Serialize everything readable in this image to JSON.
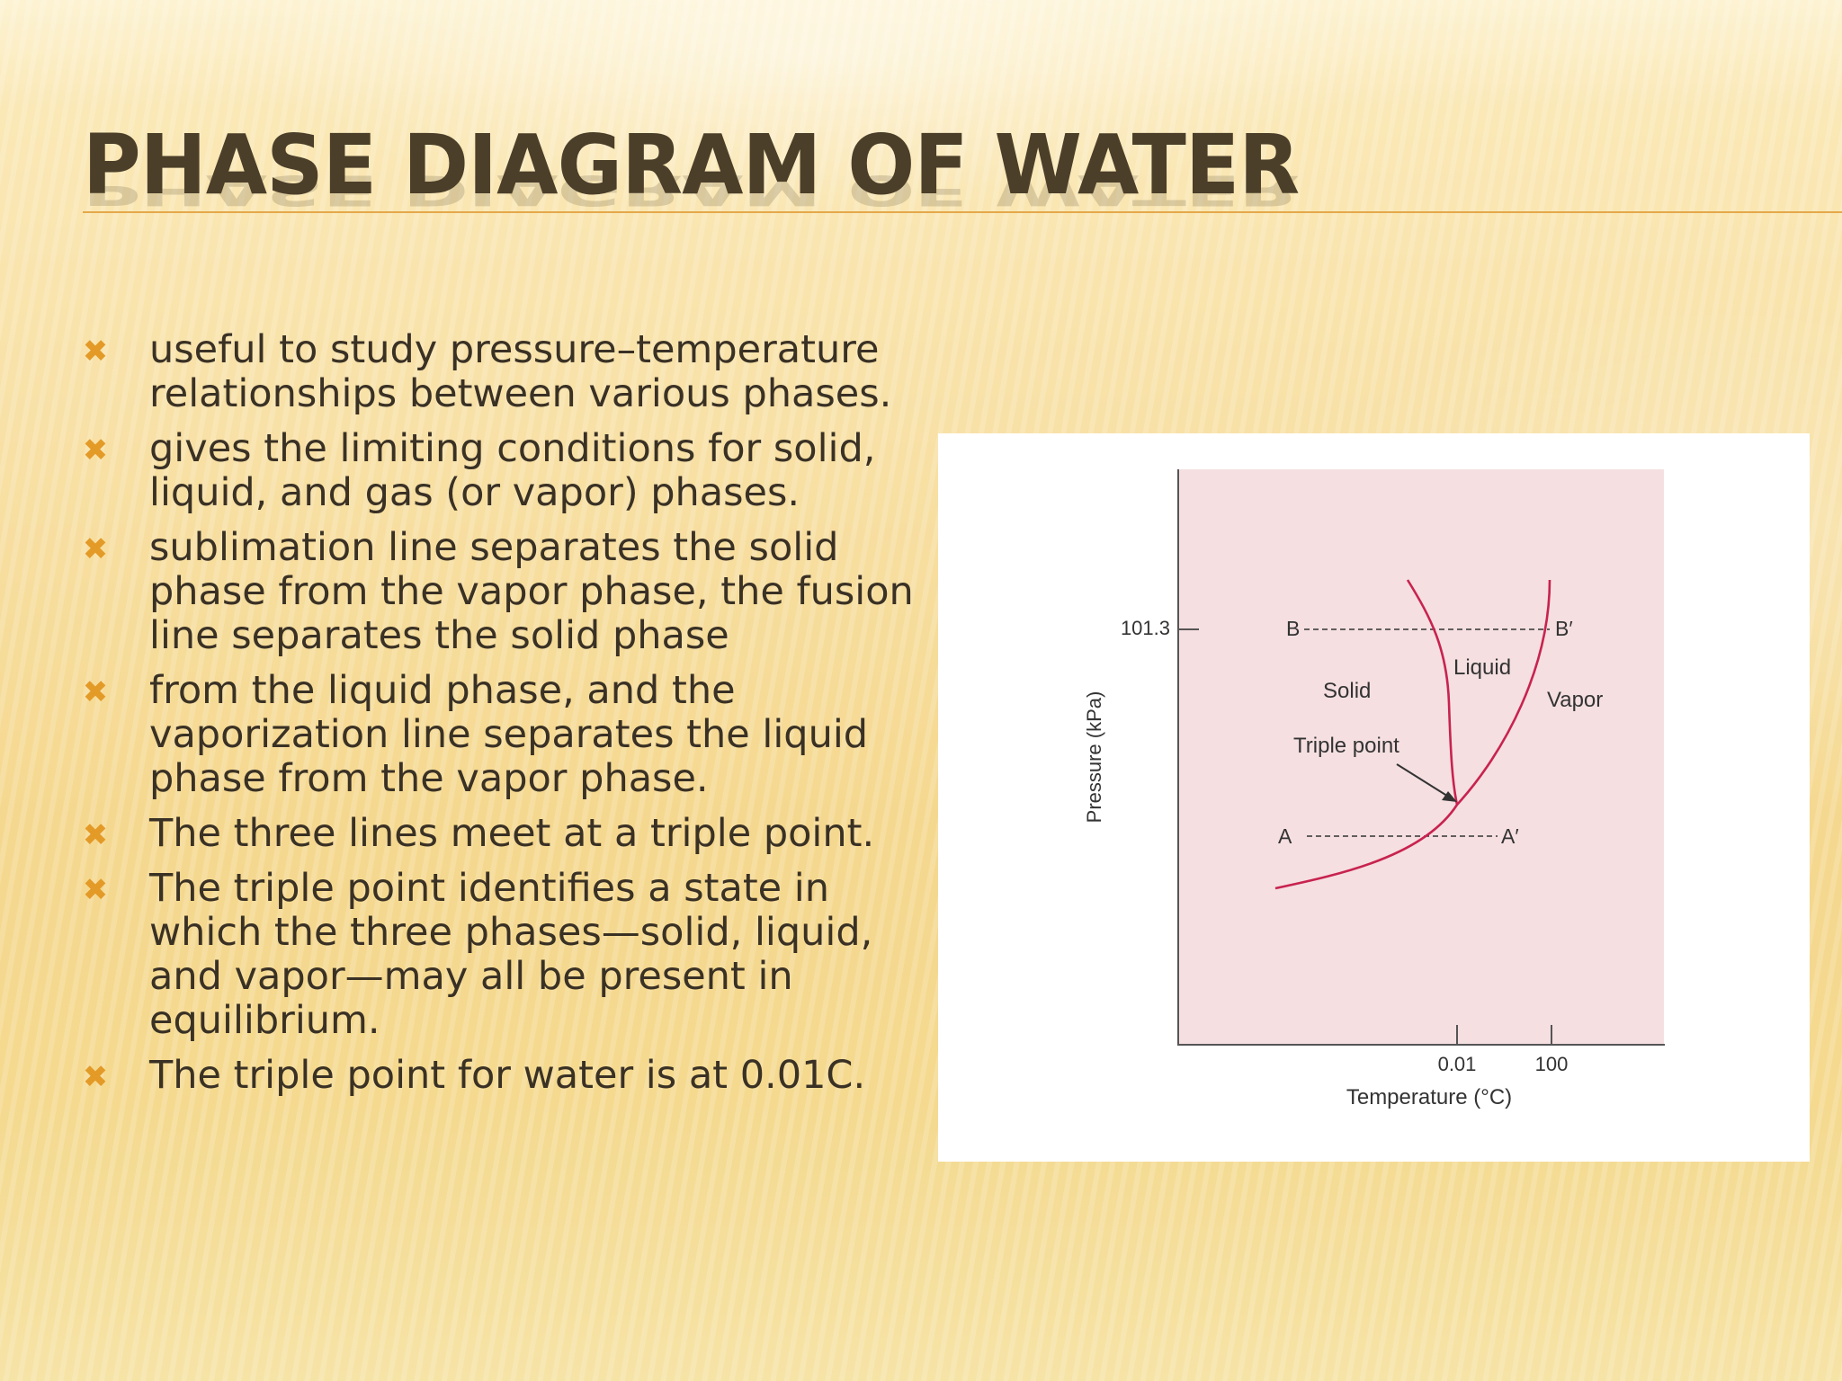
{
  "slide": {
    "title": "PHASE DIAGRAM OF WATER",
    "accent_color": "#e39a27",
    "title_color": "#4b3f2a",
    "bullet_icon": "x-mark-icon",
    "bullets": [
      "useful to study pressure–temperature relationships between various phases.",
      "gives the limiting conditions for solid, liquid, and gas (or vapor) phases.",
      "sublimation line separates the solid phase from the vapor phase, the fusion line separates the solid phase",
      "from the liquid phase, and the vaporization line separates the liquid phase from the vapor phase.",
      "The three lines meet at a triple point.",
      "The triple point identifies a state in which the three phases—solid, liquid, and vapor—may all be present in equilibrium.",
      "The triple point for water is at 0.01C."
    ]
  },
  "diagram": {
    "plot_bg_color": "#f5dfe1",
    "curve_color": "#c8234f",
    "y_axis_label": "Pressure (kPa)",
    "x_axis_label": "Temperature (°C)",
    "y_tick": "101.3",
    "x_ticks": [
      "0.01",
      "100"
    ],
    "labels": {
      "solid": "Solid",
      "liquid": "Liquid",
      "vapor": "Vapor",
      "triple_point": "Triple point",
      "b": "B",
      "b_prime": "B′",
      "a": "A",
      "a_prime": "A′"
    }
  }
}
